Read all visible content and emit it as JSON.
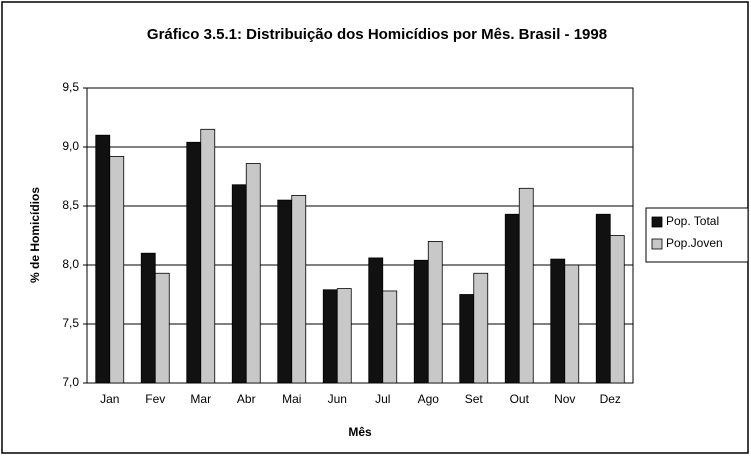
{
  "chart_data": {
    "type": "bar",
    "title": "Gráfico 3.5.1: Distribuição dos Homicídios por Mês. Brasil - 1998",
    "x_label": "Mês",
    "y_label": "% de Homicídios",
    "categories": [
      "Jan",
      "Fev",
      "Mar",
      "Abr",
      "Mai",
      "Jun",
      "Jul",
      "Ago",
      "Set",
      "Out",
      "Nov",
      "Dez"
    ],
    "series": [
      {
        "name": "Pop. Total",
        "color": "#111111",
        "values": [
          9.1,
          8.1,
          9.04,
          8.68,
          8.55,
          7.79,
          8.06,
          8.04,
          7.75,
          8.43,
          8.05,
          8.43
        ]
      },
      {
        "name": "Pop.Joven",
        "color": "#c8c8c8",
        "values": [
          8.92,
          7.93,
          9.15,
          8.86,
          8.59,
          7.8,
          7.78,
          8.2,
          7.93,
          8.65,
          8.0,
          8.25
        ]
      }
    ],
    "ylim": [
      7.0,
      9.5
    ],
    "yticks": [
      {
        "value": 7.0,
        "label": "7,0"
      },
      {
        "value": 7.5,
        "label": "7,5"
      },
      {
        "value": 8.0,
        "label": "8,0"
      },
      {
        "value": 8.5,
        "label": "8,5"
      },
      {
        "value": 9.0,
        "label": "9,0"
      },
      {
        "value": 9.5,
        "label": "9,5"
      }
    ],
    "grid": true,
    "legend": "right"
  }
}
